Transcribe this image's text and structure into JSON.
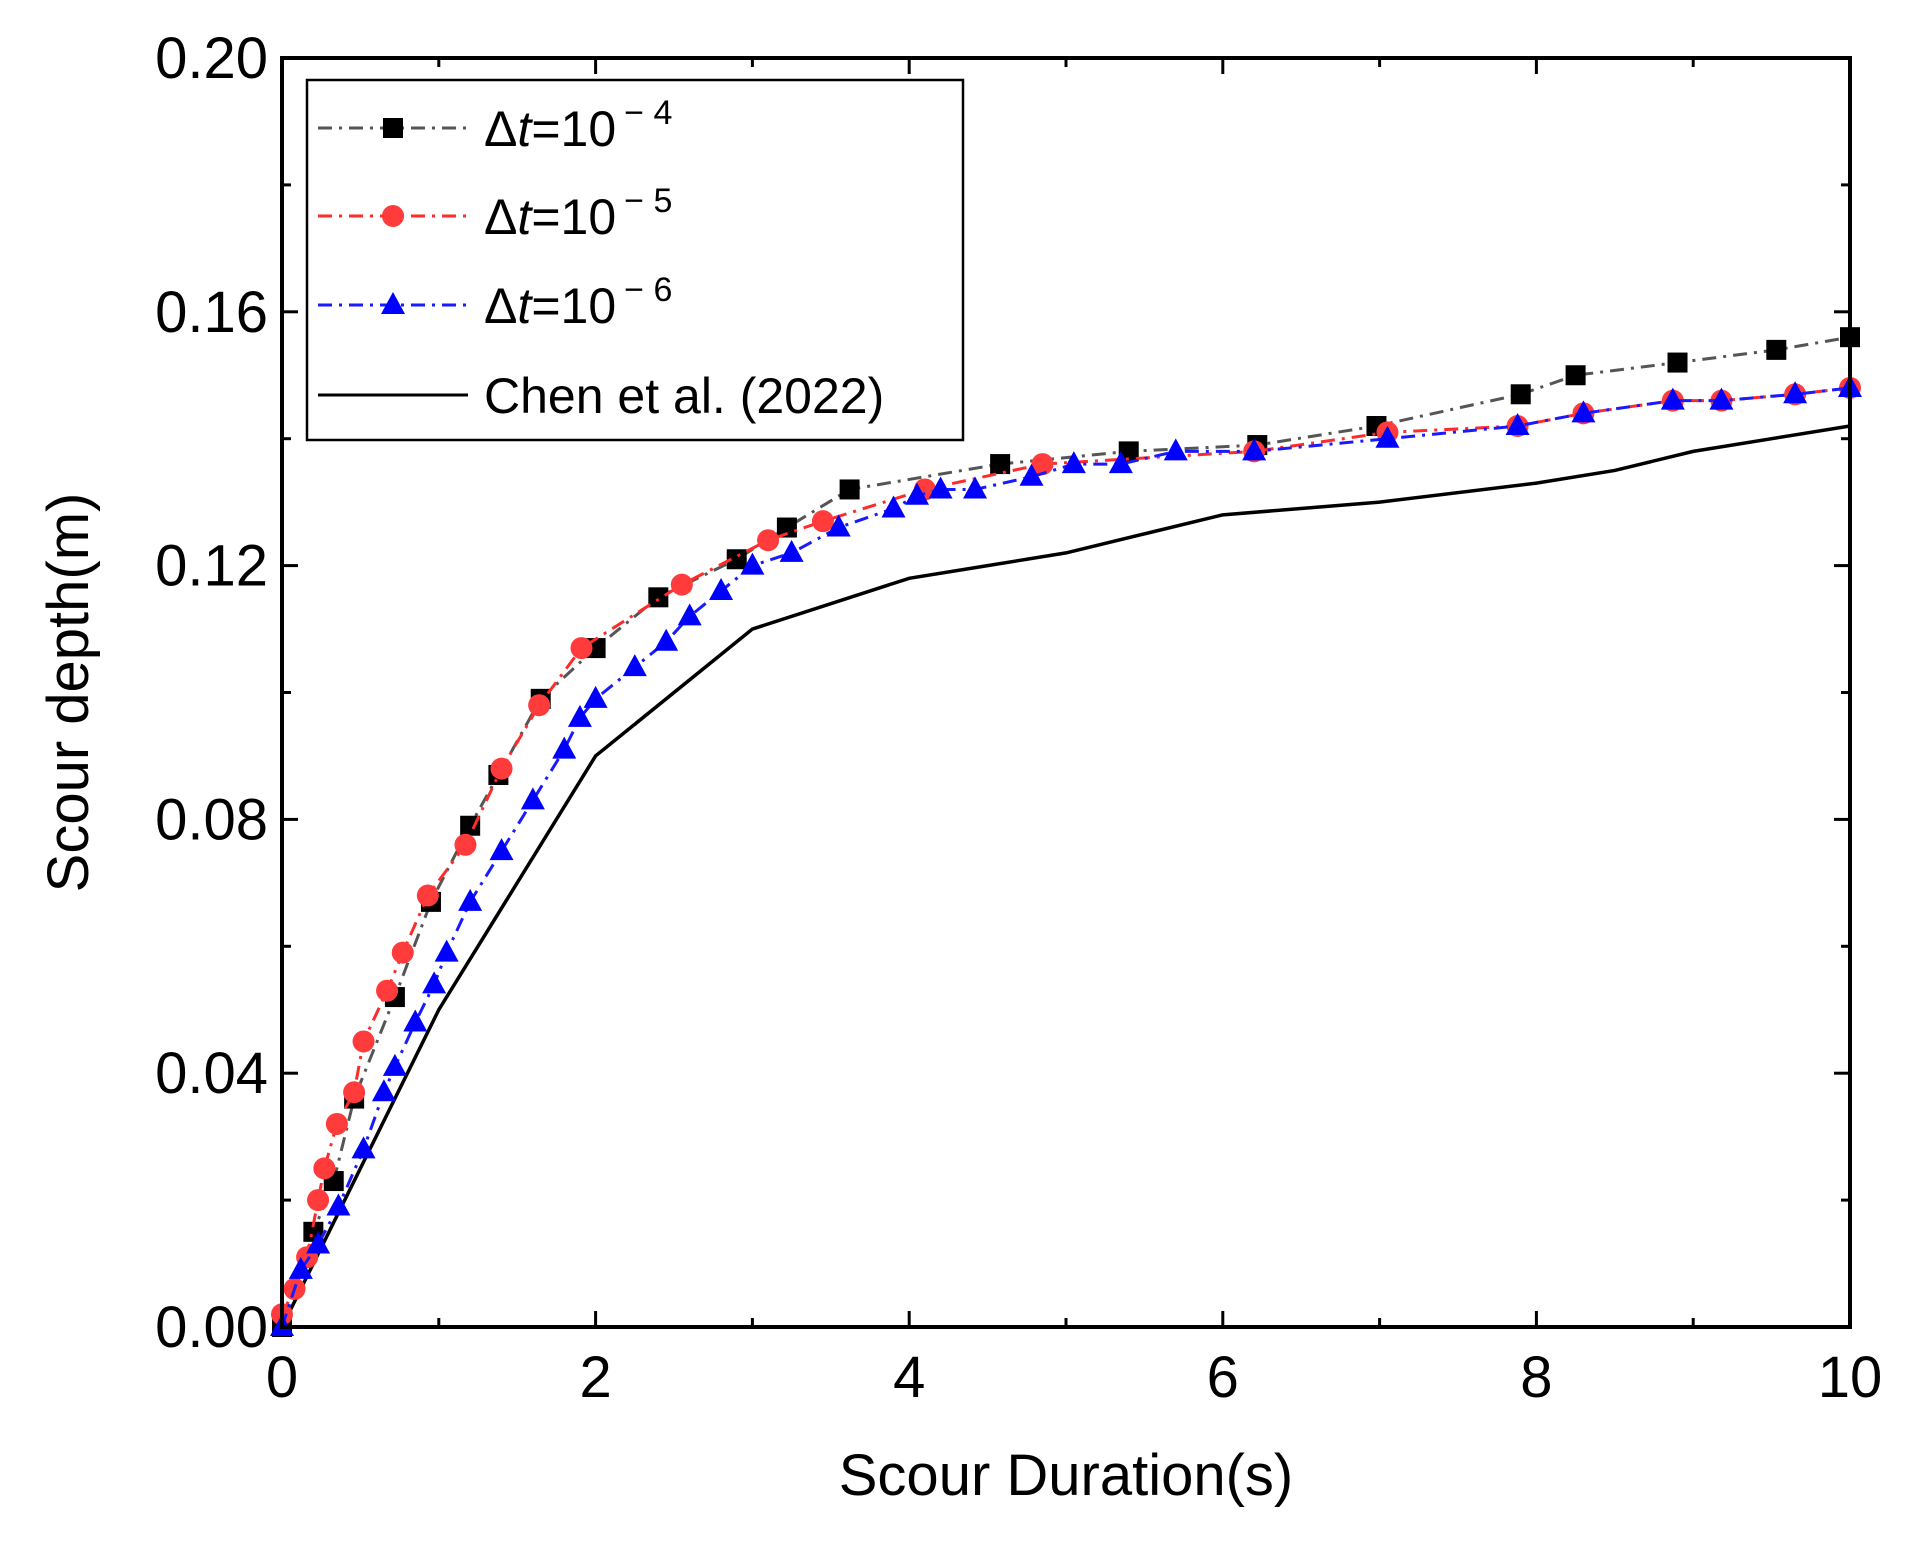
{
  "chart_data": {
    "type": "line",
    "title": "",
    "xlabel": "Scour Duration(s)",
    "ylabel": "Scour depth(m)",
    "xlim": [
      0,
      10
    ],
    "ylim": [
      0,
      0.2
    ],
    "xticks": [
      0,
      2,
      4,
      6,
      8,
      10
    ],
    "xtick_labels": [
      "0",
      "2",
      "4",
      "6",
      "8",
      "10"
    ],
    "yticks": [
      0,
      0.04,
      0.08,
      0.12,
      0.16,
      0.2
    ],
    "ytick_labels": [
      "0.00",
      "0.04",
      "0.08",
      "0.12",
      "0.16",
      "0.20"
    ],
    "grid": false,
    "legend_position": "top-left",
    "series": [
      {
        "name": "Δt=10 − 4",
        "label_main": "Δ",
        "label_var": "t",
        "label_eq": "=10",
        "label_sup": "− 4",
        "color": "#555555",
        "marker_color": "#000000",
        "marker": "square",
        "line_style": "dash-dot",
        "x": [
          0,
          0.2,
          0.33,
          0.46,
          0.72,
          0.95,
          1.2,
          1.38,
          1.65,
          2.0,
          2.4,
          2.9,
          3.22,
          3.62,
          4.58,
          5.4,
          6.22,
          6.98,
          7.9,
          8.25,
          8.9,
          9.53,
          10.0
        ],
        "y": [
          0,
          0.015,
          0.023,
          0.036,
          0.052,
          0.067,
          0.079,
          0.087,
          0.099,
          0.107,
          0.115,
          0.121,
          0.126,
          0.132,
          0.136,
          0.138,
          0.139,
          0.142,
          0.147,
          0.15,
          0.152,
          0.154,
          0.156
        ]
      },
      {
        "name": "Δt=10 − 5",
        "label_main": "Δ",
        "label_var": "t",
        "label_eq": "=10",
        "label_sup": "− 5",
        "color": "#ff2b2b",
        "marker_color": "#ff3b3b",
        "marker": "circle",
        "line_style": "dash-dot",
        "x": [
          0,
          0.08,
          0.16,
          0.23,
          0.27,
          0.35,
          0.46,
          0.52,
          0.67,
          0.77,
          0.93,
          1.17,
          1.4,
          1.64,
          1.91,
          2.55,
          3.1,
          3.45,
          4.1,
          4.85,
          6.2,
          7.05,
          7.88,
          8.3,
          8.87,
          9.18,
          9.65,
          10.0
        ],
        "y": [
          0.002,
          0.006,
          0.011,
          0.02,
          0.025,
          0.032,
          0.037,
          0.045,
          0.053,
          0.059,
          0.068,
          0.076,
          0.088,
          0.098,
          0.107,
          0.117,
          0.124,
          0.127,
          0.132,
          0.136,
          0.138,
          0.141,
          0.142,
          0.144,
          0.146,
          0.146,
          0.147,
          0.148
        ]
      },
      {
        "name": "Δt=10 − 6",
        "label_main": "Δ",
        "label_var": "t",
        "label_eq": "=10",
        "label_sup": "− 6",
        "color": "#1a1aff",
        "marker_color": "#0000ff",
        "marker": "triangle",
        "line_style": "dash-dot",
        "x": [
          0,
          0.12,
          0.23,
          0.36,
          0.52,
          0.65,
          0.72,
          0.85,
          0.97,
          1.05,
          1.2,
          1.4,
          1.6,
          1.8,
          1.9,
          2.0,
          2.25,
          2.45,
          2.6,
          2.8,
          3.0,
          3.25,
          3.55,
          3.9,
          4.05,
          4.2,
          4.42,
          4.78,
          5.05,
          5.35,
          5.7,
          6.2,
          7.05,
          7.88,
          8.3,
          8.87,
          9.18,
          9.65,
          10.0
        ],
        "y": [
          0,
          0.009,
          0.013,
          0.019,
          0.028,
          0.037,
          0.041,
          0.048,
          0.054,
          0.059,
          0.067,
          0.075,
          0.083,
          0.091,
          0.096,
          0.099,
          0.104,
          0.108,
          0.112,
          0.116,
          0.12,
          0.122,
          0.126,
          0.129,
          0.131,
          0.132,
          0.132,
          0.134,
          0.136,
          0.136,
          0.138,
          0.138,
          0.14,
          0.142,
          0.144,
          0.146,
          0.146,
          0.147,
          0.148
        ]
      },
      {
        "name": "Chen et al. (2022)",
        "label_main": "Chen et al. (2022)",
        "color": "#000000",
        "marker": "none",
        "line_style": "solid",
        "x": [
          0,
          0.5,
          1.0,
          2.0,
          3.0,
          3.5,
          4.0,
          4.5,
          5.0,
          5.5,
          6.0,
          7.0,
          8.0,
          8.5,
          9.0,
          10.0
        ],
        "y": [
          0,
          0.025,
          0.05,
          0.09,
          0.11,
          0.114,
          0.118,
          0.12,
          0.122,
          0.125,
          0.128,
          0.13,
          0.133,
          0.135,
          0.138,
          0.142
        ]
      }
    ]
  }
}
